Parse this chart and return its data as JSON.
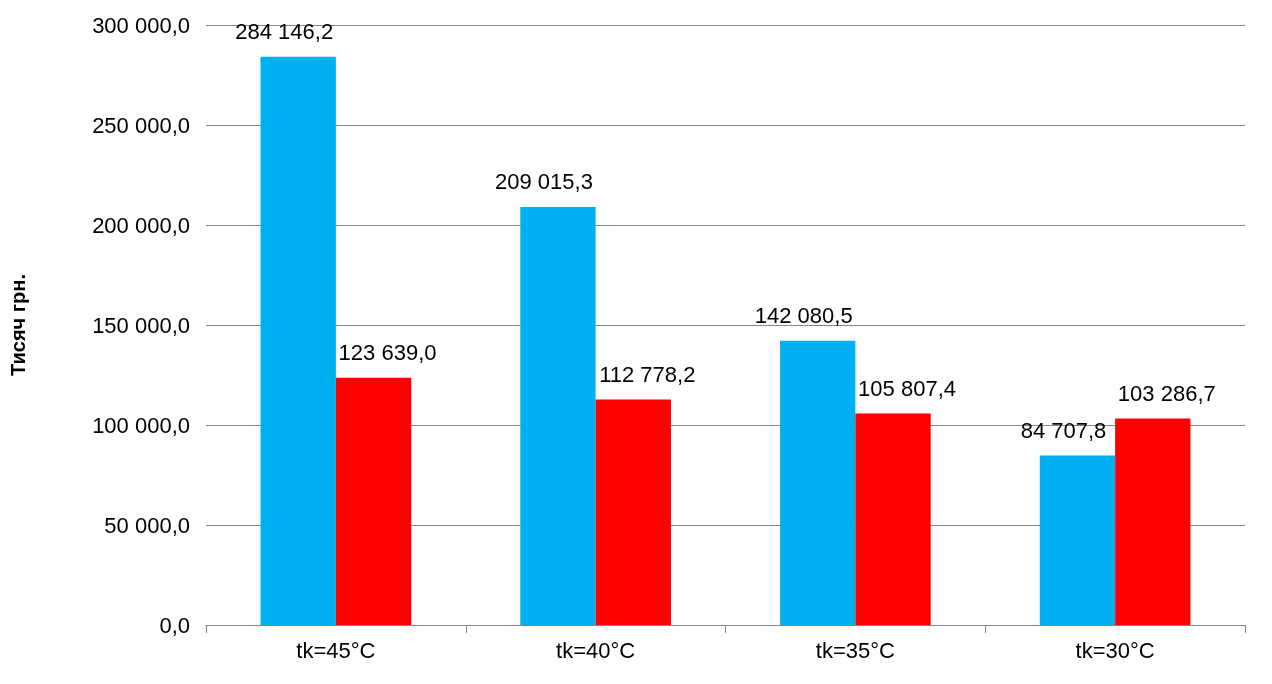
{
  "chart_data": {
    "type": "bar",
    "ylabel": "Тисяч грн.",
    "categories": [
      "tk=45°C",
      "tk=40°C",
      "tk=35°C",
      "tk=30°C"
    ],
    "series": [
      {
        "color": "#00b0f0",
        "values": [
          284146.2,
          209015.3,
          142080.5,
          84707.8
        ],
        "value_labels": [
          "284 146,2",
          "209 015,3",
          "142 080,5",
          "84 707,8"
        ]
      },
      {
        "color": "#ff0000",
        "values": [
          123639.0,
          112778.2,
          105807.4,
          103286.7
        ],
        "value_labels": [
          "123 639,0",
          "112 778,2",
          "105 807,4",
          "103 286,7"
        ]
      }
    ],
    "ylim": [
      0,
      300000
    ],
    "yticks": [
      {
        "value": 0,
        "label": "0,0"
      },
      {
        "value": 50000,
        "label": "50 000,0"
      },
      {
        "value": 100000,
        "label": "100 000,0"
      },
      {
        "value": 150000,
        "label": "150 000,0"
      },
      {
        "value": 200000,
        "label": "200 000,0"
      },
      {
        "value": 250000,
        "label": "250 000,0"
      },
      {
        "value": 300000,
        "label": "300 000,0"
      }
    ],
    "grid": "y"
  }
}
